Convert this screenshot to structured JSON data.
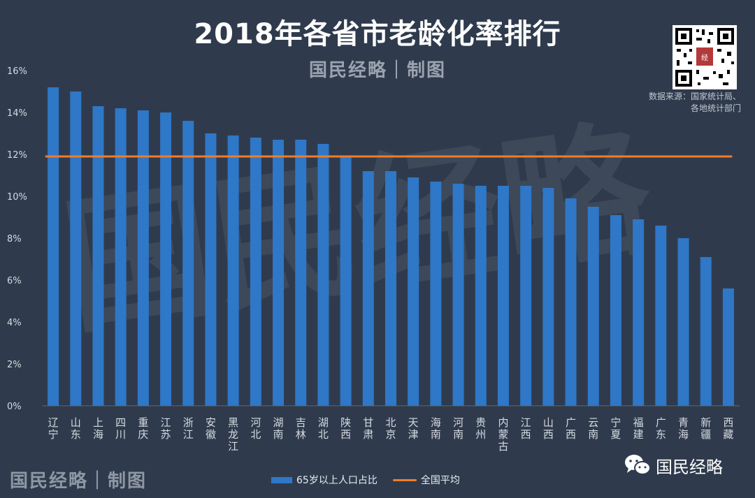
{
  "title": "2018年各省市老龄化率排行",
  "subtitle": "国民经略｜制图",
  "source": {
    "line1": "数据来源：国家统计局、",
    "line2": "各地统计部门"
  },
  "watermark": "国民经略",
  "footer": {
    "brand_bottom_left": "国民经略｜制图",
    "brand_bottom_right": "国民经略"
  },
  "colors": {
    "background": "#2f3b4d",
    "bar": "#2f77c7",
    "average_line": "#f07d2a",
    "axis_text": "#d5dae0"
  },
  "chart_data": {
    "type": "bar",
    "title": "2018年各省市老龄化率排行",
    "ylabel": "",
    "xlabel": "",
    "ylim": [
      0,
      16
    ],
    "yticks": [
      "0%",
      "2%",
      "4%",
      "6%",
      "8%",
      "10%",
      "12%",
      "14%",
      "16%"
    ],
    "ytick_values": [
      0,
      2,
      4,
      6,
      8,
      10,
      12,
      14,
      16
    ],
    "categories": [
      "辽宁",
      "山东",
      "上海",
      "四川",
      "重庆",
      "江苏",
      "浙江",
      "安徽",
      "黑龙江",
      "河北",
      "湖南",
      "吉林",
      "湖北",
      "陕西",
      "甘肃",
      "北京",
      "天津",
      "海南",
      "河南",
      "贵州",
      "内蒙古",
      "江西",
      "山西",
      "广西",
      "云南",
      "宁夏",
      "福建",
      "广东",
      "青海",
      "新疆",
      "西藏"
    ],
    "series": [
      {
        "name": "65岁以上人口占比",
        "values": [
          15.2,
          15.0,
          14.3,
          14.2,
          14.1,
          14.0,
          13.6,
          13.0,
          12.9,
          12.8,
          12.7,
          12.7,
          12.5,
          11.9,
          11.2,
          11.2,
          10.9,
          10.7,
          10.6,
          10.5,
          10.5,
          10.5,
          10.4,
          9.9,
          9.5,
          9.1,
          8.9,
          8.6,
          8.0,
          7.1,
          5.6
        ]
      },
      {
        "name": "全国平均",
        "value": 11.9
      }
    ],
    "legend": [
      "65岁以上人口占比",
      "全国平均"
    ],
    "legend_position": "bottom"
  }
}
